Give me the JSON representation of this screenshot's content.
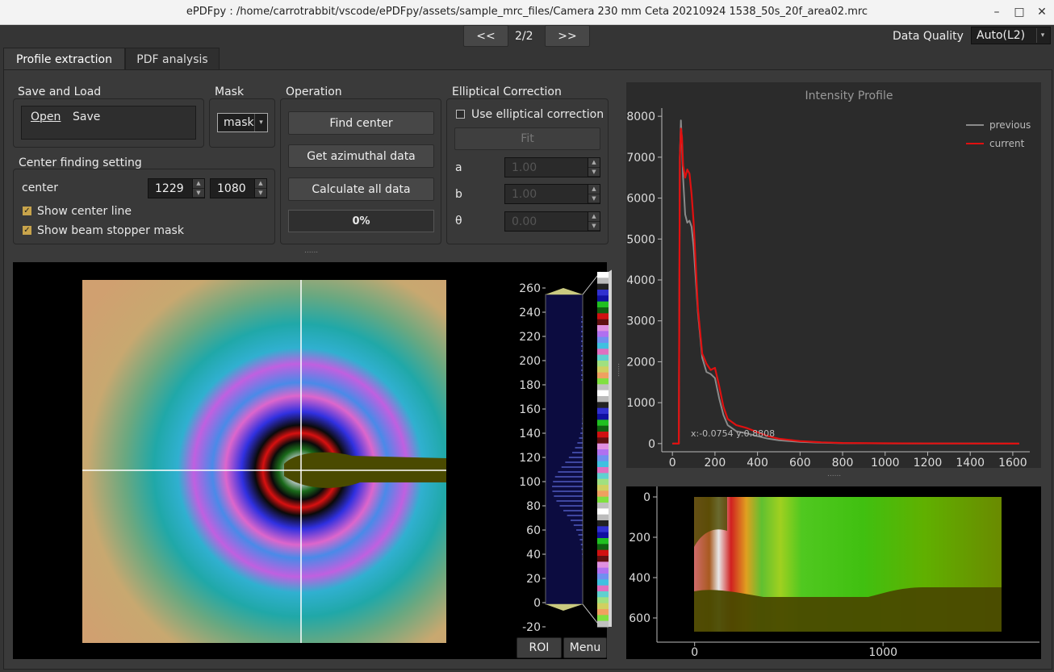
{
  "window": {
    "title": "ePDFpy : /home/carrotrabbit/vscode/ePDFpy/assets/sample_mrc_files/Camera 230 mm Ceta 20210924 1538_50s_20f_area02.mrc",
    "minimize": "–",
    "maximize": "□",
    "close": "✕"
  },
  "nav": {
    "prev": "<<",
    "page": "2/2",
    "next": ">>"
  },
  "quality": {
    "label": "Data Quality",
    "value": "Auto(L2)"
  },
  "tabs": [
    "Profile extraction",
    "PDF analysis"
  ],
  "save_load": {
    "title": "Save and Load",
    "open": "Open",
    "save": "Save"
  },
  "mask": {
    "title": "Mask",
    "value": "mask"
  },
  "operation": {
    "title": "Operation",
    "find_center": "Find center",
    "get_azimuthal": "Get azimuthal data",
    "calculate_all": "Calculate all data",
    "progress": "0%"
  },
  "elliptical": {
    "title": "Elliptical Correction",
    "use_label": "Use elliptical correction",
    "fit": "Fit",
    "a_label": "a",
    "a_value": "1.00",
    "b_label": "b",
    "b_value": "1.00",
    "theta_label": "θ",
    "theta_value": "0.00"
  },
  "center_setting": {
    "title": "Center finding setting",
    "center_label": "center",
    "cx": "1229",
    "cy": "1080",
    "show_center_line": "Show center line",
    "show_beam_stopper": "Show beam stopper mask"
  },
  "splitter": "......",
  "histogram": {
    "ticks": [
      "260",
      "240",
      "220",
      "200",
      "180",
      "160",
      "140",
      "120",
      "100",
      "80",
      "60",
      "40",
      "20",
      "0",
      "-20"
    ],
    "roi": "ROI",
    "menu": "Menu"
  },
  "chart_data": [
    {
      "type": "line",
      "title": "Intensity Profile",
      "xlabel": "",
      "ylabel": "",
      "xlim": [
        -50,
        1680
      ],
      "ylim": [
        -200,
        8200
      ],
      "x_ticks": [
        "0",
        "200",
        "400",
        "600",
        "800",
        "1000",
        "1200",
        "1400",
        "1600"
      ],
      "y_ticks": [
        "0",
        "1000",
        "2000",
        "3000",
        "4000",
        "5000",
        "6000",
        "7000",
        "8000"
      ],
      "legend": "top-right",
      "cursor_readout": "x:-0.0754 y:0.8808",
      "series": [
        {
          "name": "previous",
          "color": "#8a8a8a",
          "x": [
            0,
            30,
            35,
            40,
            45,
            50,
            60,
            70,
            80,
            90,
            100,
            120,
            140,
            160,
            180,
            200,
            220,
            240,
            260,
            300,
            350,
            400,
            450,
            500,
            600,
            700,
            800,
            1000,
            1200,
            1400,
            1630
          ],
          "y": [
            0,
            0,
            7000,
            7900,
            7300,
            6500,
            5600,
            5400,
            5450,
            5300,
            4800,
            3200,
            2100,
            1750,
            1700,
            1600,
            1100,
            700,
            450,
            300,
            250,
            180,
            120,
            80,
            40,
            20,
            10,
            5,
            2,
            1,
            0
          ]
        },
        {
          "name": "current",
          "color": "#e01010",
          "x": [
            0,
            30,
            35,
            40,
            45,
            50,
            60,
            70,
            80,
            90,
            100,
            120,
            140,
            160,
            180,
            200,
            220,
            240,
            260,
            300,
            350,
            400,
            450,
            500,
            600,
            700,
            800,
            1000,
            1200,
            1400,
            1630
          ],
          "y": [
            0,
            0,
            7000,
            7700,
            7500,
            6800,
            6500,
            6700,
            6600,
            6100,
            5400,
            3300,
            2200,
            1950,
            1800,
            1850,
            1400,
            900,
            600,
            450,
            380,
            280,
            180,
            120,
            60,
            30,
            15,
            7,
            3,
            1,
            0
          ]
        }
      ]
    },
    {
      "type": "heatmap",
      "title": "",
      "x_ticks": [
        "0",
        "1000"
      ],
      "y_ticks": [
        "0",
        "200",
        "400",
        "600"
      ],
      "xlim": [
        -200,
        1830
      ],
      "ylim": [
        0,
        720
      ]
    }
  ]
}
